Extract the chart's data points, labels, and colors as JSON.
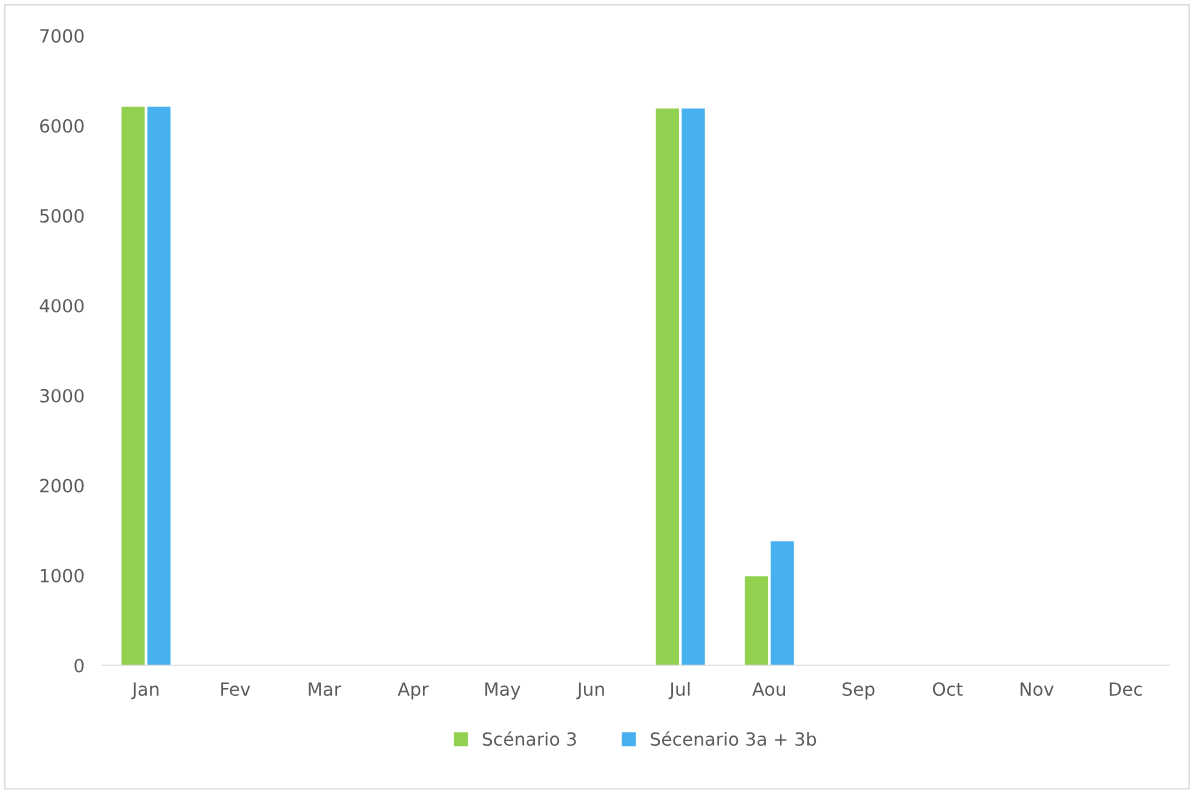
{
  "chart_data": {
    "type": "bar",
    "categories": [
      "Jan",
      "Fev",
      "Mar",
      "Apr",
      "May",
      "Jun",
      "Jul",
      "Aou",
      "Sep",
      "Oct",
      "Nov",
      "Dec"
    ],
    "series": [
      {
        "name": "Scénario 3",
        "color": "#92d050",
        "values": [
          6210,
          0,
          0,
          0,
          0,
          0,
          6190,
          990,
          0,
          0,
          0,
          0
        ]
      },
      {
        "name": "Sécenario 3a + 3b",
        "color": "#47b0ef",
        "values": [
          6210,
          0,
          0,
          0,
          0,
          0,
          6190,
          1380,
          0,
          0,
          0,
          0
        ]
      }
    ],
    "ylim": [
      0,
      7000
    ],
    "yticks": [
      0,
      1000,
      2000,
      3000,
      4000,
      5000,
      6000,
      7000
    ],
    "grid": false,
    "legend": "bottom"
  }
}
